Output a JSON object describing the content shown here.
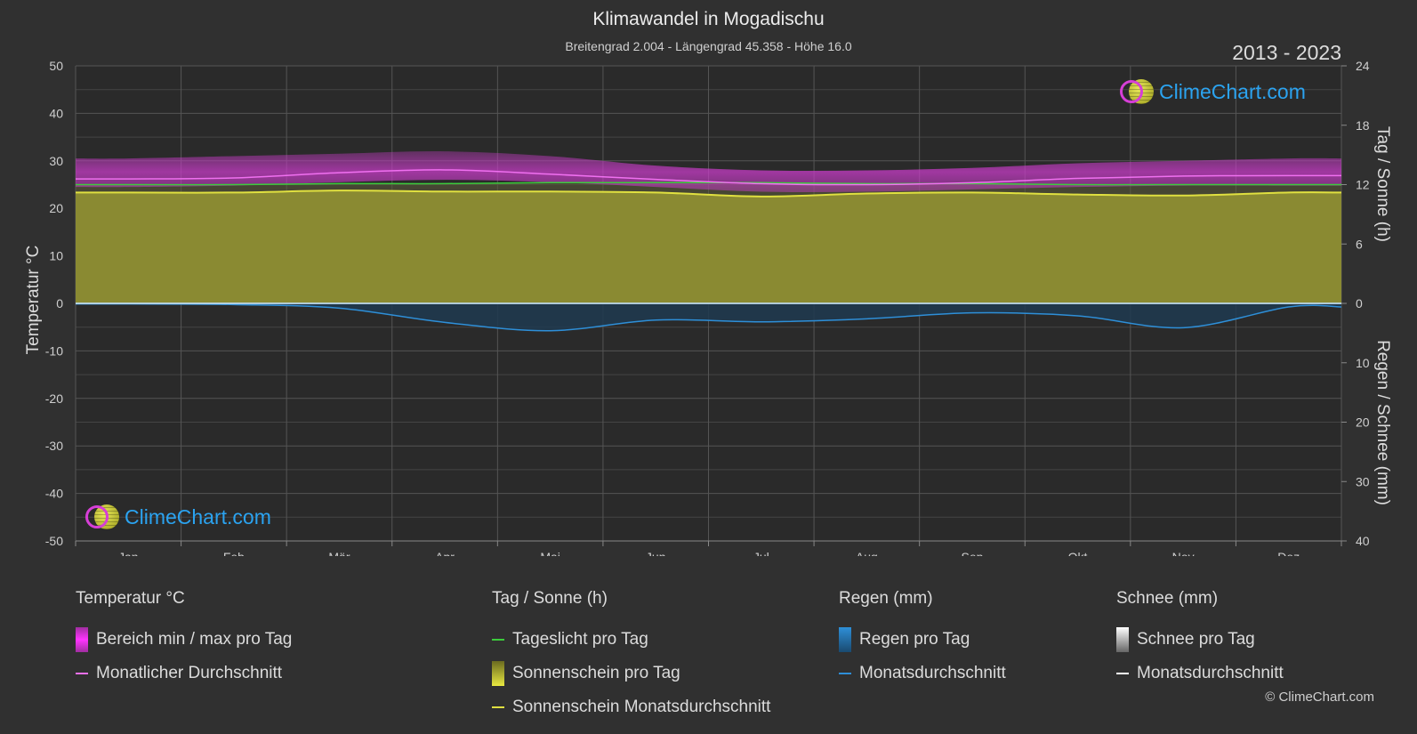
{
  "header": {
    "title": "Klimawandel in Mogadischu",
    "subtitle": "Breitengrad 2.004 - Längengrad 45.358 - Höhe 16.0",
    "years": "2013 - 2023",
    "logo_text": "ClimeChart.com",
    "copyright": "© ClimeChart.com"
  },
  "chart_data": {
    "type": "area",
    "categories": [
      "Jan",
      "Feb",
      "Mär",
      "Apr",
      "Mai",
      "Jun",
      "Jul",
      "Aug",
      "Sep",
      "Okt",
      "Nov",
      "Dez"
    ],
    "axes": {
      "left": {
        "label": "Temperatur °C",
        "min": -50,
        "max": 50,
        "ticks": [
          50,
          40,
          30,
          20,
          10,
          0,
          -10,
          -20,
          -30,
          -40,
          -50
        ]
      },
      "right_top": {
        "label": "Tag / Sonne (h)",
        "min": 0,
        "max": 24,
        "ticks": [
          24,
          18,
          12,
          6,
          0
        ]
      },
      "right_bottom": {
        "label": "Regen / Schnee (mm)",
        "min": 0,
        "max": 40,
        "ticks": [
          0,
          10,
          20,
          30,
          40
        ]
      }
    },
    "grid": true,
    "series": [
      {
        "name": "Bereich min / max pro Tag",
        "unit": "°C",
        "min": [
          24.5,
          24.8,
          25.5,
          26.0,
          25.5,
          24.5,
          23.5,
          23.5,
          24.0,
          24.5,
          24.8,
          24.8
        ],
        "max": [
          30.5,
          31.0,
          31.5,
          32.0,
          31.0,
          29.0,
          28.0,
          28.0,
          28.5,
          29.5,
          30.0,
          30.5
        ],
        "color": "#c83cc8"
      },
      {
        "name": "Monatlicher Durchschnitt",
        "unit": "°C",
        "values": [
          26.2,
          26.4,
          27.5,
          28.1,
          27.2,
          26.1,
          25.2,
          25.0,
          25.4,
          26.3,
          26.8,
          26.9
        ],
        "color": "#f070f0"
      },
      {
        "name": "Tageslicht pro Tag",
        "unit": "h",
        "values": [
          12.0,
          12.0,
          12.1,
          12.1,
          12.2,
          12.2,
          12.2,
          12.1,
          12.1,
          12.0,
          12.0,
          12.0
        ],
        "color": "#3ccc3c"
      },
      {
        "name": "Sonnenschein Monatsdurchschnitt",
        "unit": "h",
        "values": [
          11.2,
          11.2,
          11.4,
          11.3,
          11.3,
          11.2,
          10.8,
          11.1,
          11.2,
          11.0,
          10.9,
          11.2
        ],
        "color": "#e0e040"
      },
      {
        "name": "Regen Monatsdurchschnitt",
        "unit": "mm",
        "values": [
          0.1,
          0.2,
          0.8,
          3.2,
          4.6,
          2.8,
          3.1,
          2.6,
          1.6,
          2.1,
          4.1,
          0.6
        ],
        "color": "#2e8fd8"
      },
      {
        "name": "Schnee Monatsdurchschnitt",
        "unit": "mm",
        "values": [
          0,
          0,
          0,
          0,
          0,
          0,
          0,
          0,
          0,
          0,
          0,
          0
        ],
        "color": "#ffffff"
      }
    ]
  },
  "legend": {
    "temp": {
      "title": "Temperatur °C",
      "items": [
        "Bereich min / max pro Tag",
        "Monatlicher Durchschnitt"
      ]
    },
    "sun": {
      "title": "Tag / Sonne (h)",
      "items": [
        "Tageslicht pro Tag",
        "Sonnenschein pro Tag",
        "Sonnenschein Monatsdurchschnitt"
      ]
    },
    "rain": {
      "title": "Regen (mm)",
      "items": [
        "Regen pro Tag",
        "Monatsdurchschnitt"
      ]
    },
    "snow": {
      "title": "Schnee (mm)",
      "items": [
        "Schnee pro Tag",
        "Monatsdurchschnitt"
      ]
    }
  }
}
